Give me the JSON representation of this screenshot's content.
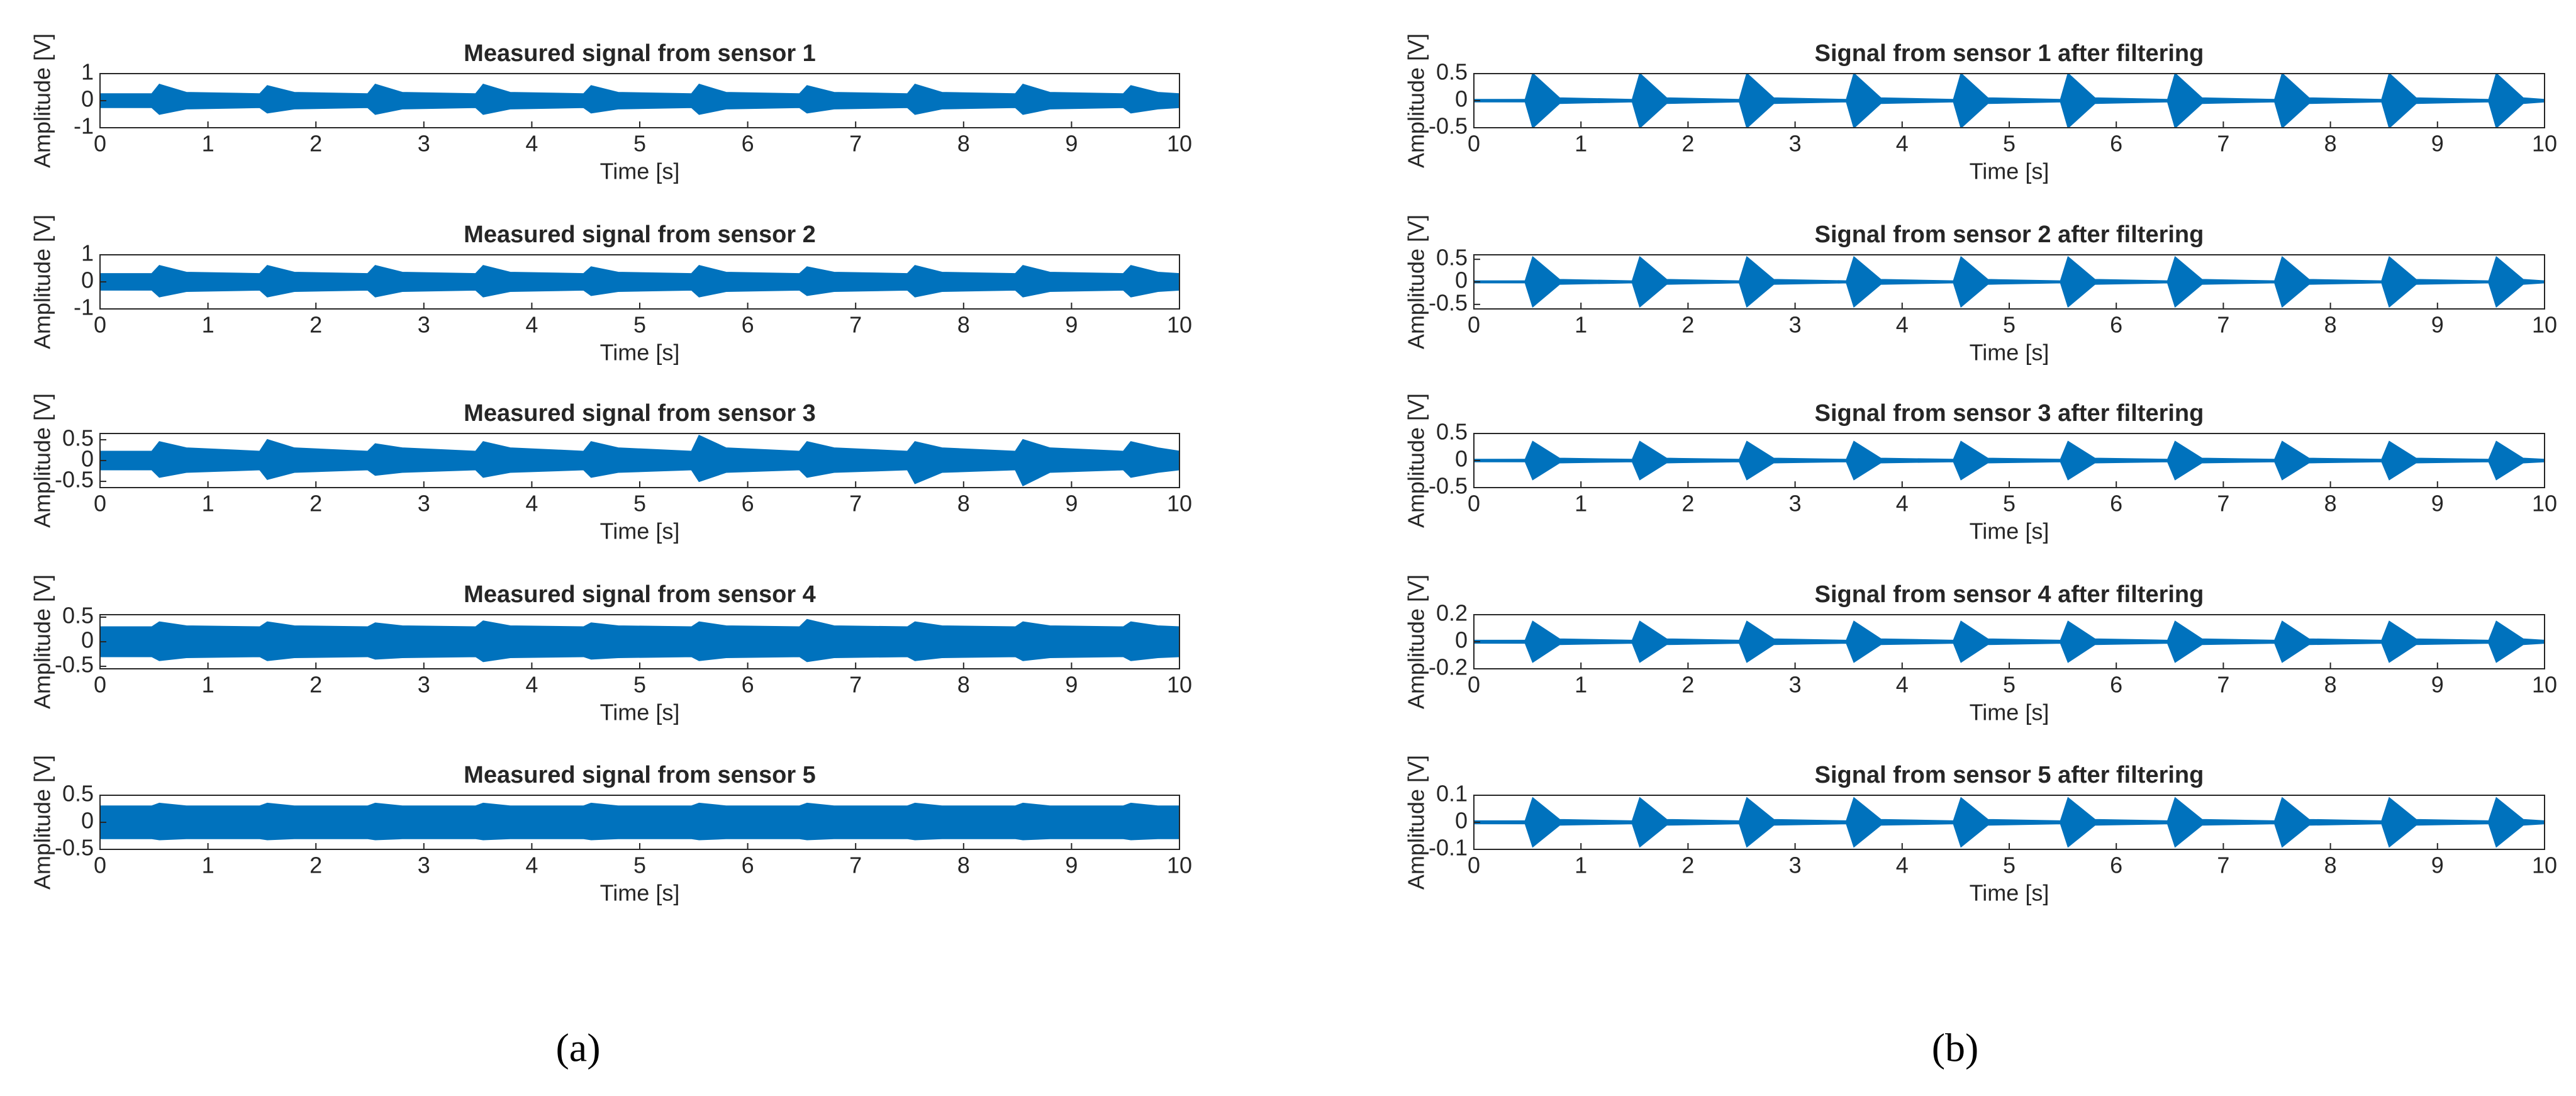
{
  "chart_data": [
    {
      "type": "band",
      "title": "Measured signal from sensor 1",
      "xlabel": "Time [s]",
      "ylabel": "Amplitude [V]",
      "color": "#0072bd",
      "xlim": [
        0,
        10
      ],
      "xticks": [
        0,
        1,
        2,
        3,
        4,
        5,
        6,
        7,
        8,
        9,
        10
      ],
      "ylim": [
        -1,
        1
      ],
      "yticks": [
        -1,
        0,
        1
      ],
      "x": [
        0,
        0.48,
        0.55,
        0.8,
        1.48,
        1.55,
        1.8,
        2.48,
        2.55,
        2.8,
        3.48,
        3.55,
        3.8,
        4.48,
        4.55,
        4.8,
        5.48,
        5.55,
        5.8,
        6.48,
        6.55,
        6.8,
        7.48,
        7.55,
        7.8,
        8.48,
        8.55,
        8.8,
        9.48,
        9.55,
        9.8,
        10
      ],
      "upper": [
        0.25,
        0.25,
        0.6,
        0.3,
        0.25,
        0.55,
        0.3,
        0.25,
        0.6,
        0.3,
        0.25,
        0.6,
        0.3,
        0.25,
        0.55,
        0.3,
        0.25,
        0.6,
        0.3,
        0.25,
        0.55,
        0.3,
        0.25,
        0.6,
        0.3,
        0.25,
        0.6,
        0.3,
        0.25,
        0.55,
        0.3,
        0.25
      ],
      "lower": [
        -0.25,
        -0.25,
        -0.5,
        -0.3,
        -0.25,
        -0.45,
        -0.3,
        -0.25,
        -0.5,
        -0.3,
        -0.25,
        -0.5,
        -0.3,
        -0.25,
        -0.45,
        -0.3,
        -0.25,
        -0.5,
        -0.3,
        -0.25,
        -0.45,
        -0.3,
        -0.25,
        -0.5,
        -0.3,
        -0.25,
        -0.5,
        -0.3,
        -0.25,
        -0.45,
        -0.3,
        -0.25
      ]
    },
    {
      "type": "band",
      "title": "Measured signal from sensor 2",
      "xlabel": "Time [s]",
      "ylabel": "Amplitude [V]",
      "color": "#0072bd",
      "xlim": [
        0,
        10
      ],
      "xticks": [
        0,
        1,
        2,
        3,
        4,
        5,
        6,
        7,
        8,
        9,
        10
      ],
      "ylim": [
        -1,
        1
      ],
      "yticks": [
        -1,
        0,
        1
      ],
      "x": [
        0,
        0.48,
        0.55,
        0.8,
        1.48,
        1.55,
        1.8,
        2.48,
        2.55,
        2.8,
        3.48,
        3.55,
        3.8,
        4.48,
        4.55,
        4.8,
        5.48,
        5.55,
        5.8,
        6.48,
        6.55,
        6.8,
        7.48,
        7.55,
        7.8,
        8.48,
        8.55,
        8.8,
        9.48,
        9.55,
        9.8,
        10
      ],
      "upper": [
        0.3,
        0.3,
        0.6,
        0.35,
        0.3,
        0.6,
        0.35,
        0.3,
        0.6,
        0.35,
        0.3,
        0.6,
        0.35,
        0.3,
        0.55,
        0.35,
        0.3,
        0.6,
        0.35,
        0.3,
        0.55,
        0.35,
        0.3,
        0.6,
        0.35,
        0.3,
        0.6,
        0.35,
        0.3,
        0.6,
        0.35,
        0.3
      ],
      "lower": [
        -0.3,
        -0.3,
        -0.55,
        -0.35,
        -0.3,
        -0.55,
        -0.35,
        -0.3,
        -0.55,
        -0.35,
        -0.3,
        -0.55,
        -0.35,
        -0.3,
        -0.5,
        -0.35,
        -0.3,
        -0.55,
        -0.35,
        -0.3,
        -0.5,
        -0.35,
        -0.3,
        -0.55,
        -0.35,
        -0.3,
        -0.55,
        -0.35,
        -0.3,
        -0.55,
        -0.35,
        -0.3
      ]
    },
    {
      "type": "band",
      "title": "Measured signal from sensor 3",
      "xlabel": "Time [s]",
      "ylabel": "Amplitude [V]",
      "color": "#0072bd",
      "xlim": [
        0,
        10
      ],
      "xticks": [
        0,
        1,
        2,
        3,
        4,
        5,
        6,
        7,
        8,
        9,
        10
      ],
      "ylim": [
        -0.65,
        0.65
      ],
      "yticks": [
        -0.5,
        0,
        0.5
      ],
      "x": [
        0,
        0.48,
        0.55,
        0.8,
        1.48,
        1.55,
        1.8,
        2.48,
        2.55,
        2.8,
        3.48,
        3.55,
        3.8,
        4.48,
        4.55,
        4.8,
        5.48,
        5.55,
        5.8,
        6.48,
        6.55,
        6.8,
        7.48,
        7.55,
        7.8,
        8.48,
        8.55,
        8.8,
        9.48,
        9.55,
        9.8,
        10
      ],
      "upper": [
        0.22,
        0.22,
        0.45,
        0.3,
        0.22,
        0.5,
        0.3,
        0.22,
        0.4,
        0.3,
        0.22,
        0.45,
        0.3,
        0.22,
        0.45,
        0.3,
        0.22,
        0.6,
        0.3,
        0.22,
        0.45,
        0.3,
        0.22,
        0.45,
        0.3,
        0.22,
        0.5,
        0.3,
        0.22,
        0.45,
        0.3,
        0.22
      ],
      "lower": [
        -0.22,
        -0.22,
        -0.4,
        -0.28,
        -0.22,
        -0.45,
        -0.28,
        -0.22,
        -0.35,
        -0.28,
        -0.22,
        -0.4,
        -0.28,
        -0.22,
        -0.4,
        -0.28,
        -0.22,
        -0.5,
        -0.28,
        -0.22,
        -0.4,
        -0.28,
        -0.22,
        -0.55,
        -0.28,
        -0.22,
        -0.6,
        -0.28,
        -0.22,
        -0.4,
        -0.28,
        -0.22
      ]
    },
    {
      "type": "band",
      "title": "Measured signal from sensor 4",
      "xlabel": "Time [s]",
      "ylabel": "Amplitude [V]",
      "color": "#0072bd",
      "xlim": [
        0,
        10
      ],
      "xticks": [
        0,
        1,
        2,
        3,
        4,
        5,
        6,
        7,
        8,
        9,
        10
      ],
      "ylim": [
        -0.55,
        0.55
      ],
      "yticks": [
        -0.5,
        0,
        0.5
      ],
      "x": [
        0,
        0.48,
        0.55,
        0.8,
        1.48,
        1.55,
        1.8,
        2.48,
        2.55,
        2.8,
        3.48,
        3.55,
        3.8,
        4.48,
        4.55,
        4.8,
        5.48,
        5.55,
        5.8,
        6.48,
        6.55,
        6.8,
        7.48,
        7.55,
        7.8,
        8.48,
        8.55,
        8.8,
        9.48,
        9.55,
        9.8,
        10
      ],
      "upper": [
        0.3,
        0.3,
        0.4,
        0.32,
        0.3,
        0.4,
        0.32,
        0.3,
        0.38,
        0.32,
        0.3,
        0.42,
        0.32,
        0.3,
        0.38,
        0.32,
        0.3,
        0.4,
        0.32,
        0.3,
        0.45,
        0.32,
        0.3,
        0.4,
        0.32,
        0.3,
        0.4,
        0.32,
        0.3,
        0.4,
        0.32,
        0.3
      ],
      "lower": [
        -0.3,
        -0.3,
        -0.38,
        -0.32,
        -0.3,
        -0.38,
        -0.32,
        -0.3,
        -0.35,
        -0.32,
        -0.3,
        -0.4,
        -0.32,
        -0.3,
        -0.35,
        -0.32,
        -0.3,
        -0.38,
        -0.32,
        -0.3,
        -0.4,
        -0.32,
        -0.3,
        -0.38,
        -0.32,
        -0.3,
        -0.38,
        -0.32,
        -0.3,
        -0.38,
        -0.32,
        -0.3
      ]
    },
    {
      "type": "band",
      "title": "Measured signal from sensor 5",
      "xlabel": "Time [s]",
      "ylabel": "Amplitude [V]",
      "color": "#0072bd",
      "xlim": [
        0,
        10
      ],
      "xticks": [
        0,
        1,
        2,
        3,
        4,
        5,
        6,
        7,
        8,
        9,
        10
      ],
      "ylim": [
        -0.5,
        0.5
      ],
      "yticks": [
        -0.5,
        0,
        0.5
      ],
      "x": [
        0,
        0.48,
        0.55,
        0.8,
        1.48,
        1.55,
        1.8,
        2.48,
        2.55,
        2.8,
        3.48,
        3.55,
        3.8,
        4.48,
        4.55,
        4.8,
        5.48,
        5.55,
        5.8,
        6.48,
        6.55,
        6.8,
        7.48,
        7.55,
        7.8,
        8.48,
        8.55,
        8.8,
        9.48,
        9.55,
        9.8,
        10
      ],
      "upper": [
        0.3,
        0.3,
        0.35,
        0.3,
        0.3,
        0.35,
        0.3,
        0.3,
        0.35,
        0.3,
        0.3,
        0.35,
        0.3,
        0.3,
        0.35,
        0.3,
        0.3,
        0.35,
        0.3,
        0.3,
        0.35,
        0.3,
        0.3,
        0.35,
        0.3,
        0.3,
        0.35,
        0.3,
        0.3,
        0.35,
        0.3,
        0.3
      ],
      "lower": [
        -0.3,
        -0.3,
        -0.32,
        -0.3,
        -0.3,
        -0.32,
        -0.3,
        -0.3,
        -0.32,
        -0.3,
        -0.3,
        -0.32,
        -0.3,
        -0.3,
        -0.32,
        -0.3,
        -0.3,
        -0.32,
        -0.3,
        -0.3,
        -0.32,
        -0.3,
        -0.3,
        -0.32,
        -0.3,
        -0.3,
        -0.32,
        -0.3,
        -0.3,
        -0.32,
        -0.3,
        -0.3
      ]
    },
    {
      "type": "band",
      "title": "Signal from sensor 1 after filtering",
      "xlabel": "Time [s]",
      "ylabel": "Amplitude [V]",
      "color": "#0072bd",
      "xlim": [
        0,
        10
      ],
      "xticks": [
        0,
        1,
        2,
        3,
        4,
        5,
        6,
        7,
        8,
        9,
        10
      ],
      "ylim": [
        -0.5,
        0.5
      ],
      "yticks": [
        -0.5,
        0,
        0.5
      ],
      "x": [
        0,
        0.48,
        0.55,
        0.8,
        1.48,
        1.55,
        1.8,
        2.48,
        2.55,
        2.8,
        3.48,
        3.55,
        3.8,
        4.48,
        4.55,
        4.8,
        5.48,
        5.55,
        5.8,
        6.48,
        6.55,
        6.8,
        7.48,
        7.55,
        7.8,
        8.48,
        8.55,
        8.8,
        9.48,
        9.55,
        9.8,
        10
      ],
      "upper": [
        0.02,
        0.02,
        0.5,
        0.05,
        0.02,
        0.5,
        0.05,
        0.02,
        0.5,
        0.05,
        0.02,
        0.5,
        0.05,
        0.02,
        0.5,
        0.05,
        0.02,
        0.5,
        0.05,
        0.02,
        0.5,
        0.05,
        0.02,
        0.5,
        0.05,
        0.02,
        0.5,
        0.05,
        0.02,
        0.5,
        0.05,
        0.02
      ],
      "lower": [
        -0.02,
        -0.02,
        -0.5,
        -0.05,
        -0.02,
        -0.5,
        -0.05,
        -0.02,
        -0.5,
        -0.05,
        -0.02,
        -0.5,
        -0.05,
        -0.02,
        -0.5,
        -0.05,
        -0.02,
        -0.5,
        -0.05,
        -0.02,
        -0.5,
        -0.05,
        -0.02,
        -0.5,
        -0.05,
        -0.02,
        -0.5,
        -0.05,
        -0.02,
        -0.5,
        -0.05,
        -0.02
      ]
    },
    {
      "type": "band",
      "title": "Signal from sensor 2 after filtering",
      "xlabel": "Time [s]",
      "ylabel": "Amplitude [V]",
      "color": "#0072bd",
      "xlim": [
        0,
        10
      ],
      "xticks": [
        0,
        1,
        2,
        3,
        4,
        5,
        6,
        7,
        8,
        9,
        10
      ],
      "ylim": [
        -0.6,
        0.6
      ],
      "yticks": [
        -0.5,
        0,
        0.5
      ],
      "x": [
        0,
        0.48,
        0.55,
        0.8,
        1.48,
        1.55,
        1.8,
        2.48,
        2.55,
        2.8,
        3.48,
        3.55,
        3.8,
        4.48,
        4.55,
        4.8,
        5.48,
        5.55,
        5.8,
        6.48,
        6.55,
        6.8,
        7.48,
        7.55,
        7.8,
        8.48,
        8.55,
        8.8,
        9.48,
        9.55,
        9.8,
        10
      ],
      "upper": [
        0.02,
        0.02,
        0.55,
        0.05,
        0.02,
        0.55,
        0.05,
        0.02,
        0.55,
        0.05,
        0.02,
        0.55,
        0.05,
        0.02,
        0.55,
        0.05,
        0.02,
        0.55,
        0.05,
        0.02,
        0.55,
        0.05,
        0.02,
        0.55,
        0.05,
        0.02,
        0.55,
        0.05,
        0.02,
        0.55,
        0.05,
        0.02
      ],
      "lower": [
        -0.02,
        -0.02,
        -0.55,
        -0.05,
        -0.02,
        -0.55,
        -0.05,
        -0.02,
        -0.55,
        -0.05,
        -0.02,
        -0.55,
        -0.05,
        -0.02,
        -0.55,
        -0.05,
        -0.02,
        -0.55,
        -0.05,
        -0.02,
        -0.55,
        -0.05,
        -0.02,
        -0.55,
        -0.05,
        -0.02,
        -0.55,
        -0.05,
        -0.02,
        -0.55,
        -0.05,
        -0.02
      ]
    },
    {
      "type": "band",
      "title": "Signal from sensor 3 after filtering",
      "xlabel": "Time [s]",
      "ylabel": "Amplitude [V]",
      "color": "#0072bd",
      "xlim": [
        0,
        10
      ],
      "xticks": [
        0,
        1,
        2,
        3,
        4,
        5,
        6,
        7,
        8,
        9,
        10
      ],
      "ylim": [
        -0.5,
        0.5
      ],
      "yticks": [
        -0.5,
        0,
        0.5
      ],
      "x": [
        0,
        0.48,
        0.55,
        0.8,
        1.48,
        1.55,
        1.8,
        2.48,
        2.55,
        2.8,
        3.48,
        3.55,
        3.8,
        4.48,
        4.55,
        4.8,
        5.48,
        5.55,
        5.8,
        6.48,
        6.55,
        6.8,
        7.48,
        7.55,
        7.8,
        8.48,
        8.55,
        8.8,
        9.48,
        9.55,
        9.8,
        10
      ],
      "upper": [
        0.02,
        0.02,
        0.35,
        0.04,
        0.02,
        0.35,
        0.04,
        0.02,
        0.35,
        0.04,
        0.02,
        0.35,
        0.04,
        0.02,
        0.35,
        0.04,
        0.02,
        0.35,
        0.04,
        0.02,
        0.35,
        0.04,
        0.02,
        0.35,
        0.04,
        0.02,
        0.35,
        0.04,
        0.02,
        0.35,
        0.04,
        0.02
      ],
      "lower": [
        -0.02,
        -0.02,
        -0.35,
        -0.04,
        -0.02,
        -0.35,
        -0.04,
        -0.02,
        -0.35,
        -0.04,
        -0.02,
        -0.35,
        -0.04,
        -0.02,
        -0.35,
        -0.04,
        -0.02,
        -0.35,
        -0.04,
        -0.02,
        -0.35,
        -0.04,
        -0.02,
        -0.35,
        -0.04,
        -0.02,
        -0.35,
        -0.04,
        -0.02,
        -0.35,
        -0.04,
        -0.02
      ]
    },
    {
      "type": "band",
      "title": "Signal from sensor 4 after filtering",
      "xlabel": "Time [s]",
      "ylabel": "Amplitude [V]",
      "color": "#0072bd",
      "xlim": [
        0,
        10
      ],
      "xticks": [
        0,
        1,
        2,
        3,
        4,
        5,
        6,
        7,
        8,
        9,
        10
      ],
      "ylim": [
        -0.2,
        0.2
      ],
      "yticks": [
        -0.2,
        0,
        0.2
      ],
      "x": [
        0,
        0.48,
        0.55,
        0.8,
        1.48,
        1.55,
        1.8,
        2.48,
        2.55,
        2.8,
        3.48,
        3.55,
        3.8,
        4.48,
        4.55,
        4.8,
        5.48,
        5.55,
        5.8,
        6.48,
        6.55,
        6.8,
        7.48,
        7.55,
        7.8,
        8.48,
        8.55,
        8.8,
        9.48,
        9.55,
        9.8,
        10
      ],
      "upper": [
        0.01,
        0.01,
        0.15,
        0.02,
        0.01,
        0.15,
        0.02,
        0.01,
        0.15,
        0.02,
        0.01,
        0.15,
        0.02,
        0.01,
        0.15,
        0.02,
        0.01,
        0.15,
        0.02,
        0.01,
        0.15,
        0.02,
        0.01,
        0.15,
        0.02,
        0.01,
        0.15,
        0.02,
        0.01,
        0.15,
        0.02,
        0.01
      ],
      "lower": [
        -0.01,
        -0.01,
        -0.15,
        -0.02,
        -0.01,
        -0.15,
        -0.02,
        -0.01,
        -0.15,
        -0.02,
        -0.01,
        -0.15,
        -0.02,
        -0.01,
        -0.15,
        -0.02,
        -0.01,
        -0.15,
        -0.02,
        -0.01,
        -0.15,
        -0.02,
        -0.01,
        -0.15,
        -0.02,
        -0.01,
        -0.15,
        -0.02,
        -0.01,
        -0.15,
        -0.02,
        -0.01
      ]
    },
    {
      "type": "band",
      "title": "Signal from sensor 5 after filtering",
      "xlabel": "Time [s]",
      "ylabel": "Amplitude [V]",
      "color": "#0072bd",
      "xlim": [
        0,
        10
      ],
      "xticks": [
        0,
        1,
        2,
        3,
        4,
        5,
        6,
        7,
        8,
        9,
        10
      ],
      "ylim": [
        -0.1,
        0.1
      ],
      "yticks": [
        -0.1,
        0,
        0.1
      ],
      "x": [
        0,
        0.48,
        0.55,
        0.8,
        1.48,
        1.55,
        1.8,
        2.48,
        2.55,
        2.8,
        3.48,
        3.55,
        3.8,
        4.48,
        4.55,
        4.8,
        5.48,
        5.55,
        5.8,
        6.48,
        6.55,
        6.8,
        7.48,
        7.55,
        7.8,
        8.48,
        8.55,
        8.8,
        9.48,
        9.55,
        9.8,
        10
      ],
      "upper": [
        0.005,
        0.005,
        0.09,
        0.01,
        0.005,
        0.09,
        0.01,
        0.005,
        0.09,
        0.01,
        0.005,
        0.09,
        0.01,
        0.005,
        0.09,
        0.01,
        0.005,
        0.09,
        0.01,
        0.005,
        0.09,
        0.01,
        0.005,
        0.09,
        0.01,
        0.005,
        0.09,
        0.01,
        0.005,
        0.09,
        0.01,
        0.005
      ],
      "lower": [
        -0.005,
        -0.005,
        -0.09,
        -0.01,
        -0.005,
        -0.09,
        -0.01,
        -0.005,
        -0.09,
        -0.01,
        -0.005,
        -0.09,
        -0.01,
        -0.005,
        -0.09,
        -0.01,
        -0.005,
        -0.09,
        -0.01,
        -0.005,
        -0.09,
        -0.01,
        -0.005,
        -0.09,
        -0.01,
        -0.005,
        -0.09,
        -0.01,
        -0.005,
        -0.09,
        -0.01,
        -0.005
      ]
    }
  ],
  "panel_labels": [
    "(a)",
    "(b)"
  ]
}
